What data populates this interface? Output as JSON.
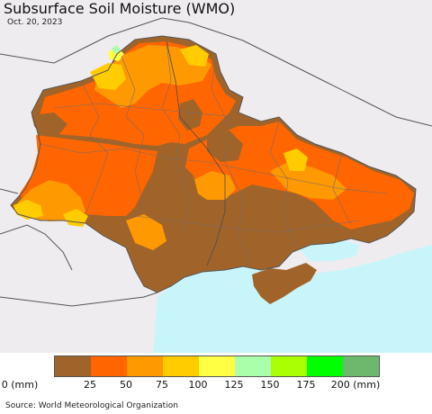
{
  "header": {
    "title": "Subsurface Soil Moisture (WMO)",
    "date": "Oct. 20, 2023"
  },
  "legend": {
    "colors": [
      "#a0642a",
      "#ff6600",
      "#ff9900",
      "#ffcc00",
      "#ffff44",
      "#aaffaa",
      "#aaff00",
      "#00ff00",
      "#6cb86c"
    ],
    "labels": [
      "0 (mm)",
      "25",
      "50",
      "75",
      "100",
      "125",
      "150",
      "175",
      "200 (mm)"
    ]
  },
  "map": {
    "sea_color": "#c8f5fa",
    "land_outside_color": "#efecef",
    "border_color": "#555555"
  },
  "footer": {
    "source": "Source: World Meteorological Organization"
  }
}
